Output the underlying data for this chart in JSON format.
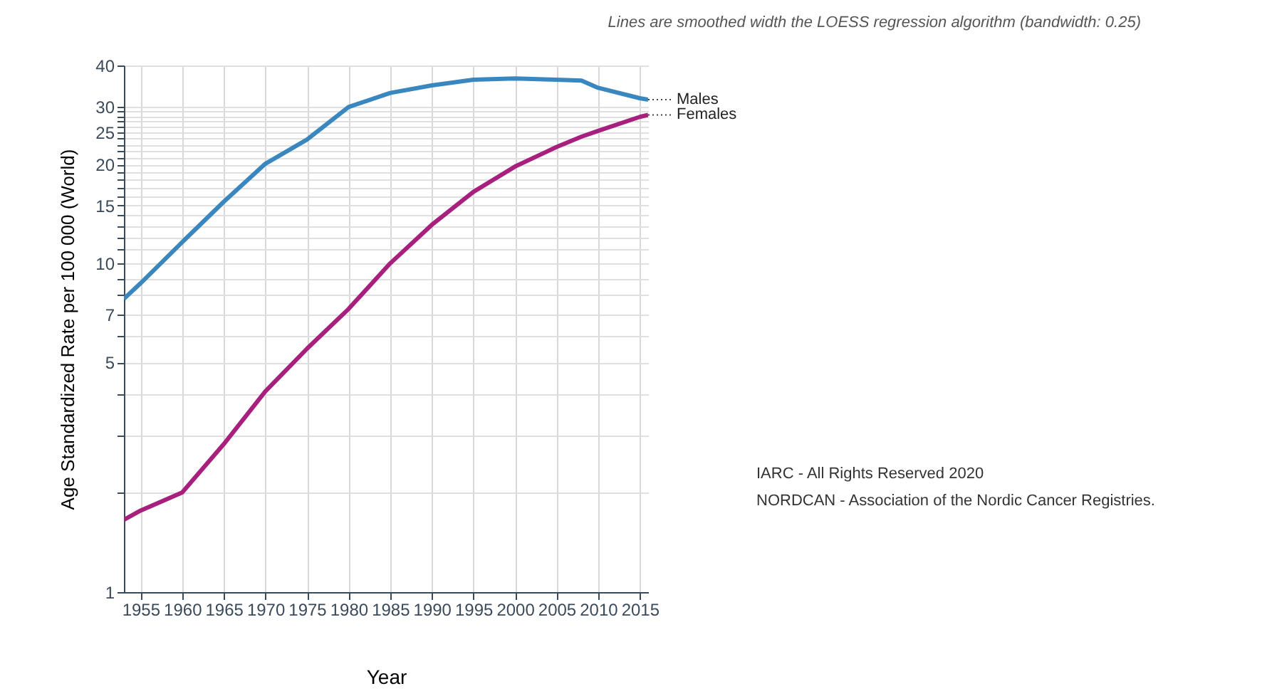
{
  "chart_data": {
    "type": "line",
    "xlabel": "Year",
    "ylabel": "Age Standardized Rate per 100 000 (World)",
    "x": [
      1953,
      1955,
      1960,
      1965,
      1970,
      1975,
      1980,
      1985,
      1990,
      1995,
      2000,
      2005,
      2008,
      2010,
      2015,
      2016
    ],
    "series": [
      {
        "name": "Males",
        "color": "#3a87c0",
        "values": [
          7.8,
          8.7,
          11.6,
          15.4,
          20.1,
          23.8,
          29.9,
          33,
          34.8,
          36.2,
          36.5,
          36.2,
          36,
          34.2,
          31.8,
          31.5
        ]
      },
      {
        "name": "Females",
        "color": "#a8207e",
        "values": [
          1.66,
          1.77,
          2.01,
          2.82,
          4.08,
          5.5,
          7.27,
          10,
          13.1,
          16.5,
          19.7,
          22.6,
          24.3,
          25.3,
          27.9,
          28.3
        ]
      }
    ],
    "log": true,
    "xlim": [
      1953,
      2016
    ],
    "xticks": [
      1955,
      1960,
      1965,
      1970,
      1975,
      1980,
      1985,
      1990,
      1995,
      2000,
      2005,
      2010,
      2015
    ],
    "ylim": [
      1,
      40
    ],
    "yticks": [
      1,
      {
        "value": 2,
        "label": null
      },
      {
        "value": 3,
        "label": null
      },
      {
        "value": 4,
        "label": null
      },
      5,
      {
        "value": 6,
        "label": null
      },
      7,
      {
        "value": 8,
        "label": null
      },
      {
        "value": 9,
        "label": null
      },
      10,
      {
        "value": 11,
        "label": null
      },
      {
        "value": 12,
        "label": null
      },
      {
        "value": 13,
        "label": null
      },
      {
        "value": 14,
        "label": null
      },
      15,
      {
        "value": 16,
        "label": null
      },
      {
        "value": 17,
        "label": null
      },
      {
        "value": 18,
        "label": null
      },
      {
        "value": 19,
        "label": null
      },
      20,
      {
        "value": 21,
        "label": null
      },
      {
        "value": 22,
        "label": null
      },
      {
        "value": 23,
        "label": null
      },
      {
        "value": 24,
        "label": null
      },
      25,
      {
        "value": 26,
        "label": null
      },
      {
        "value": 27,
        "label": null
      },
      {
        "value": 28,
        "label": null
      },
      {
        "value": 29,
        "label": null
      },
      30,
      40
    ],
    "grid": true,
    "legend": false,
    "marker": "none",
    "line_style": "solid",
    "annotations": [
      "Lines are smoothed width the LOESS regression algorithm (bandwidth: 0.25)",
      "IARC - All Rights Reserved 2020",
      "NORDCAN - Association of the Nordic Cancer Registries."
    ]
  }
}
